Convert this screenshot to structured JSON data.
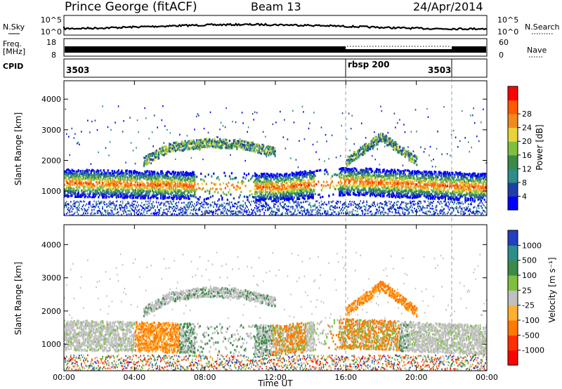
{
  "header": {
    "station": "Prince George (fitACF)",
    "beam": "Beam 13",
    "date": "24/Apr/2014"
  },
  "noise_panel": {
    "left_label": "N.Sky",
    "right_label": "N.Search",
    "left_ticks": [
      "10^5",
      "10^0"
    ],
    "right_ticks": [
      "10^5",
      "10^0"
    ]
  },
  "freq_panel": {
    "left_label_1": "Freq.",
    "left_label_2": "[MHz]",
    "left_ticks": [
      "18",
      "8"
    ],
    "right_label": "Nave",
    "right_ticks": [
      "60",
      "0"
    ]
  },
  "cpid": {
    "label": "CPID",
    "entries": [
      {
        "text": "3503",
        "start_hour": 0
      },
      {
        "text": "rbsp 200",
        "start_hour": 16
      },
      {
        "text": "3503",
        "start_hour": 22
      }
    ]
  },
  "chart_data": [
    {
      "type": "heatmap",
      "name": "power",
      "ylabel": "Slant Range [km]",
      "yticks": [
        1000,
        2000,
        3000,
        4000
      ],
      "ylim": [
        200,
        4600
      ],
      "xlim": [
        0,
        24
      ],
      "xticks": [
        "00:00",
        "04:00",
        "08:00",
        "12:00",
        "16:00",
        "20:00",
        "00:00"
      ],
      "colorbar": {
        "label": "Power [dB]",
        "ticks": [
          "4",
          "8",
          "12",
          "16",
          "20",
          "24",
          "28"
        ],
        "colors": [
          "#0000ff",
          "#1e3fa6",
          "#2e8d8a",
          "#3a8a4a",
          "#7fbf3f",
          "#e8d33a",
          "#f08a1e",
          "#ff5a00",
          "#ff0000"
        ]
      },
      "bands": [
        {
          "hours": [
            0,
            4,
            8,
            12,
            16,
            20,
            24
          ],
          "range_km": [
            1300,
            1250,
            1200,
            1150,
            1350,
            1250,
            1150
          ],
          "level": "strong"
        },
        {
          "hours": [
            4.5,
            6,
            8,
            10,
            12
          ],
          "range_km": [
            2000,
            2450,
            2600,
            2550,
            2300
          ],
          "level": "medium"
        },
        {
          "hours": [
            16,
            17,
            18,
            19,
            20
          ],
          "range_km": [
            2000,
            2400,
            2800,
            2400,
            2000
          ],
          "level": "medium"
        }
      ]
    },
    {
      "type": "heatmap",
      "name": "velocity",
      "ylabel": "Slant Range [km]",
      "yticks": [
        1000,
        2000,
        3000,
        4000
      ],
      "ylim": [
        200,
        4600
      ],
      "xlim": [
        0,
        24
      ],
      "xticks": [
        "00:00",
        "04:00",
        "08:00",
        "12:00",
        "16:00",
        "20:00",
        "00:00"
      ],
      "xlabel": "Time UT",
      "colorbar": {
        "label": "Velocity [m s⁻¹]",
        "ticks": [
          "1000",
          "500",
          "100",
          "25",
          "-25",
          "-100",
          "-500",
          "-1000"
        ],
        "colors": [
          "#2040c0",
          "#2e8d8a",
          "#3a8a4a",
          "#7fbf3f",
          "#c0c0c0",
          "#ffb030",
          "#ff7a00",
          "#ff3000",
          "#ff0000"
        ]
      }
    }
  ]
}
